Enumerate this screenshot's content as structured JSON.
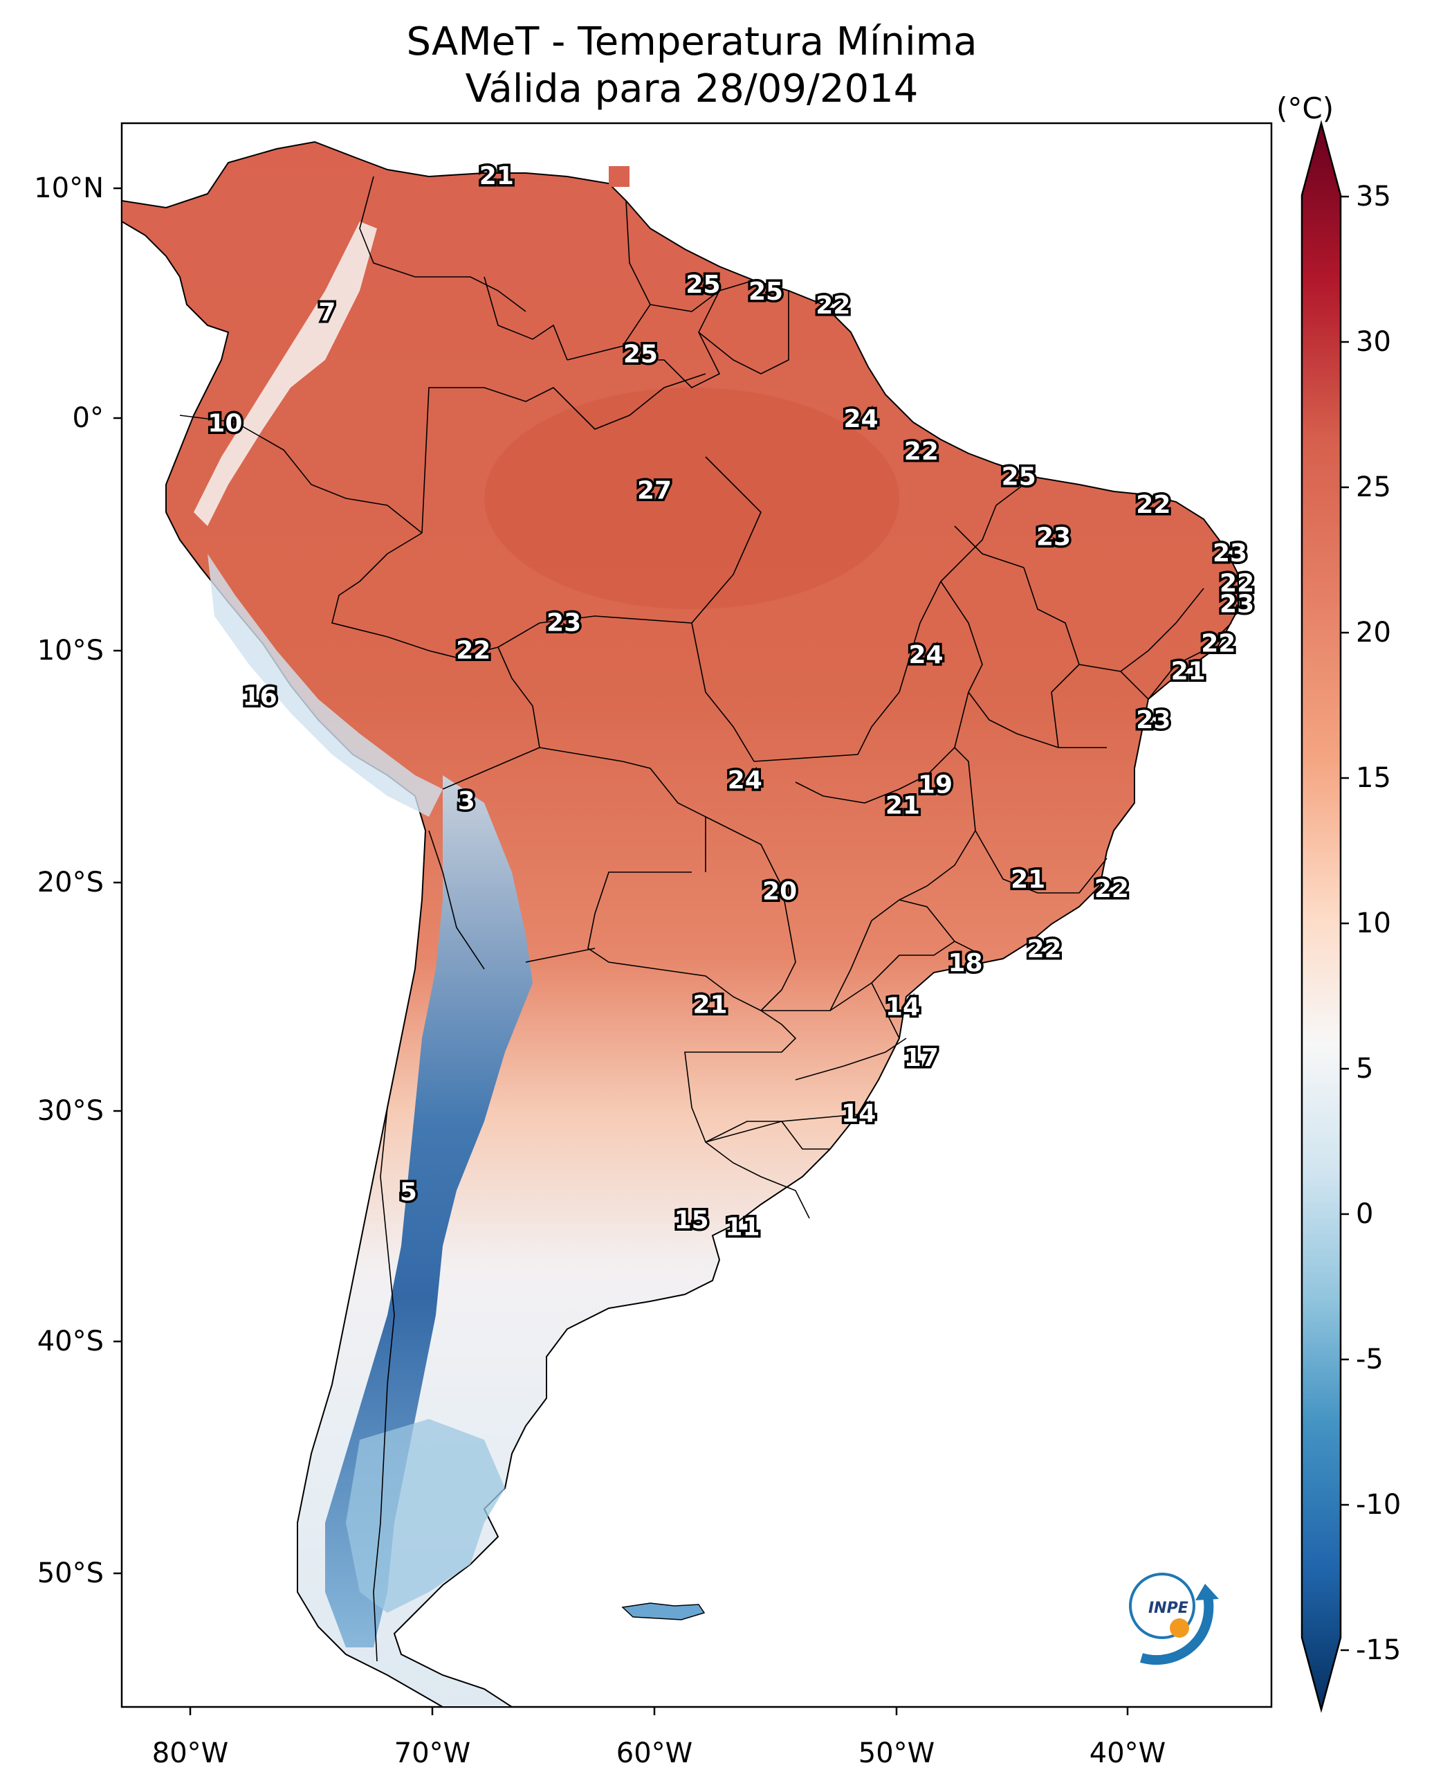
{
  "map": {
    "title_line1": "SAMeT - Temperatura Mínima",
    "title_line2": "Válida para 28/09/2014",
    "lon_labels": [
      "80°W",
      "70°W",
      "60°W",
      "50°W",
      "40°W"
    ],
    "lat_labels": [
      "10°N",
      "0°",
      "10°S",
      "20°S",
      "30°S",
      "40°S",
      "50°S"
    ],
    "colorbar": {
      "unit": "(°C)",
      "ticks": [
        "35",
        "30",
        "25",
        "20",
        "15",
        "10",
        "5",
        "0",
        "-5",
        "-10",
        "-15"
      ],
      "colors": [
        "#67001f",
        "#b2182b",
        "#d6604d",
        "#f4a582",
        "#fddbc7",
        "#f7f7f7",
        "#d1e5f0",
        "#92c5de",
        "#4393c3",
        "#2166ac",
        "#053061"
      ]
    },
    "logo_text": "INPE",
    "stations": [
      {
        "label": "21",
        "lon": -66.8,
        "lat": 10.5
      },
      {
        "label": "25",
        "lon": -57.9,
        "lat": 5.8
      },
      {
        "label": "25",
        "lon": -55.2,
        "lat": 5.5
      },
      {
        "label": "22",
        "lon": -52.3,
        "lat": 4.9
      },
      {
        "label": "7",
        "lon": -74.1,
        "lat": 4.6
      },
      {
        "label": "25",
        "lon": -60.6,
        "lat": 2.8
      },
      {
        "label": "24",
        "lon": -51.1,
        "lat": 0.0
      },
      {
        "label": "10",
        "lon": -78.5,
        "lat": -0.2
      },
      {
        "label": "22",
        "lon": -48.5,
        "lat": -1.4
      },
      {
        "label": "25",
        "lon": -44.3,
        "lat": -2.5
      },
      {
        "label": "22",
        "lon": -38.5,
        "lat": -3.7
      },
      {
        "label": "27",
        "lon": -60.0,
        "lat": -3.1
      },
      {
        "label": "23",
        "lon": -42.8,
        "lat": -5.1
      },
      {
        "label": "23",
        "lon": -35.2,
        "lat": -5.8
      },
      {
        "label": "22",
        "lon": -34.9,
        "lat": -7.1
      },
      {
        "label": "23",
        "lon": -34.9,
        "lat": -8.0
      },
      {
        "label": "23",
        "lon": -63.9,
        "lat": -8.8
      },
      {
        "label": "22",
        "lon": -67.8,
        "lat": -10.0
      },
      {
        "label": "22",
        "lon": -35.7,
        "lat": -9.7
      },
      {
        "label": "24",
        "lon": -48.3,
        "lat": -10.2
      },
      {
        "label": "21",
        "lon": -37.0,
        "lat": -10.9
      },
      {
        "label": "16",
        "lon": -77.0,
        "lat": -12.0
      },
      {
        "label": "23",
        "lon": -38.5,
        "lat": -13.0
      },
      {
        "label": "24",
        "lon": -56.1,
        "lat": -15.6
      },
      {
        "label": "19",
        "lon": -47.9,
        "lat": -15.8
      },
      {
        "label": "21",
        "lon": -49.3,
        "lat": -16.7
      },
      {
        "label": "3",
        "lon": -68.1,
        "lat": -16.5
      },
      {
        "label": "21",
        "lon": -43.9,
        "lat": -19.9
      },
      {
        "label": "22",
        "lon": -40.3,
        "lat": -20.3
      },
      {
        "label": "20",
        "lon": -54.6,
        "lat": -20.4
      },
      {
        "label": "22",
        "lon": -43.2,
        "lat": -22.9
      },
      {
        "label": "18",
        "lon": -46.6,
        "lat": -23.5
      },
      {
        "label": "21",
        "lon": -57.6,
        "lat": -25.3
      },
      {
        "label": "14",
        "lon": -49.3,
        "lat": -25.4
      },
      {
        "label": "17",
        "lon": -48.5,
        "lat": -27.6
      },
      {
        "label": "14",
        "lon": -51.2,
        "lat": -30.0
      },
      {
        "label": "5",
        "lon": -70.6,
        "lat": -33.4
      },
      {
        "label": "15",
        "lon": -58.4,
        "lat": -34.6
      },
      {
        "label": "11",
        "lon": -56.2,
        "lat": -34.9
      }
    ]
  }
}
